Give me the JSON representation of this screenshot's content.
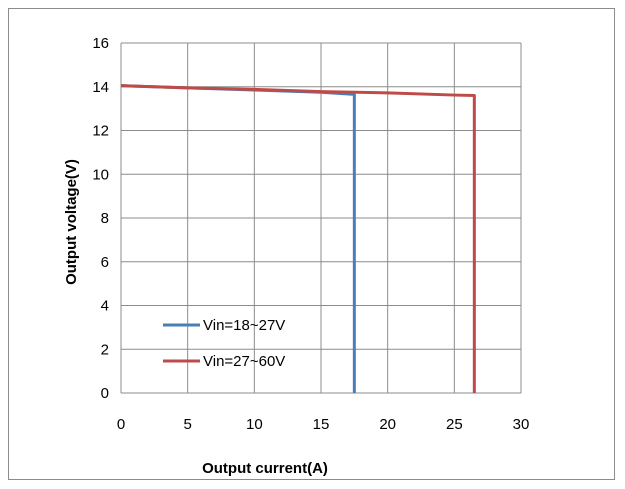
{
  "chart_data": {
    "type": "line",
    "title": "",
    "xlabel": "Output current(A)",
    "ylabel": "Output voltage(V)",
    "xlim": [
      0,
      30
    ],
    "ylim": [
      0,
      16
    ],
    "xticks": [
      0,
      5,
      10,
      15,
      20,
      25,
      30
    ],
    "yticks": [
      0,
      2,
      4,
      6,
      8,
      10,
      12,
      14,
      16
    ],
    "grid": true,
    "legend_position": "bottom-left",
    "series": [
      {
        "name": "Vin=18~27V",
        "color": "#4a7ebb",
        "x": [
          0,
          5,
          10,
          15,
          17.5,
          17.5
        ],
        "y": [
          14.05,
          13.95,
          13.85,
          13.75,
          13.65,
          0
        ]
      },
      {
        "name": "Vin=27~60V",
        "color": "#be4b48",
        "x": [
          0,
          5,
          10,
          15,
          20,
          25,
          26.5,
          26.5
        ],
        "y": [
          14.05,
          13.95,
          13.88,
          13.78,
          13.72,
          13.62,
          13.6,
          0
        ]
      }
    ]
  }
}
